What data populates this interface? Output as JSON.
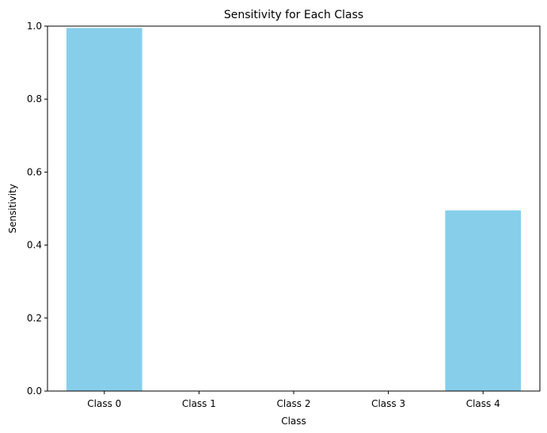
{
  "chart_data": {
    "type": "bar",
    "title": "Sensitivity for Each Class",
    "xlabel": "Class",
    "ylabel": "Sensitivity",
    "categories": [
      "Class 0",
      "Class 1",
      "Class 2",
      "Class 3",
      "Class 4"
    ],
    "values": [
      0.995,
      0.0,
      0.0,
      0.0,
      0.495
    ],
    "ylim": [
      0,
      1
    ],
    "yticks": [
      "0.0",
      "0.2",
      "0.4",
      "0.6",
      "0.8",
      "1.0"
    ],
    "grid": false,
    "legend": "none",
    "bar_color": "#87CEEB",
    "axis_color": "#000000"
  }
}
